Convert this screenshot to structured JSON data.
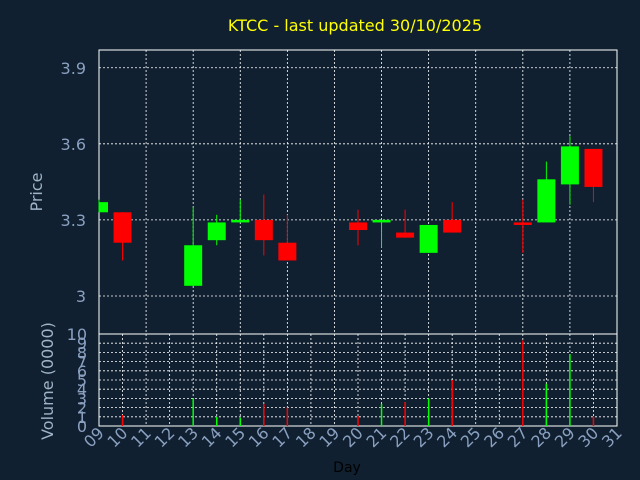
{
  "chart_data": [
    {
      "type": "candlestick",
      "title": "KTCC - last updated 30/10/2025",
      "ylabel": "Price",
      "ylim": [
        2.85,
        3.97
      ],
      "yticks": [
        "3",
        "3.3",
        "3.6",
        "3.9"
      ],
      "x": [
        "09",
        "10",
        "11",
        "12",
        "13",
        "14",
        "15",
        "16",
        "17",
        "18",
        "19",
        "20",
        "21",
        "22",
        "23",
        "24",
        "25",
        "26",
        "27",
        "28",
        "29",
        "30",
        "31"
      ],
      "grid": true,
      "candles": [
        {
          "day": 9,
          "open": 3.33,
          "high": 3.38,
          "low": 3.33,
          "close": 3.37
        },
        {
          "day": 10,
          "open": 3.33,
          "high": 3.33,
          "low": 3.14,
          "close": 3.21
        },
        {
          "day": 13,
          "open": 3.04,
          "high": 3.35,
          "low": 3.04,
          "close": 3.2
        },
        {
          "day": 14,
          "open": 3.22,
          "high": 3.32,
          "low": 3.2,
          "close": 3.29
        },
        {
          "day": 15,
          "open": 3.29,
          "high": 3.38,
          "low": 3.29,
          "close": 3.3
        },
        {
          "day": 16,
          "open": 3.3,
          "high": 3.4,
          "low": 3.16,
          "close": 3.22
        },
        {
          "day": 17,
          "open": 3.21,
          "high": 3.32,
          "low": 3.14,
          "close": 3.14
        },
        {
          "day": 20,
          "open": 3.29,
          "high": 3.34,
          "low": 3.2,
          "close": 3.26
        },
        {
          "day": 21,
          "open": 3.29,
          "high": 3.3,
          "low": 3.19,
          "close": 3.3
        },
        {
          "day": 22,
          "open": 3.25,
          "high": 3.34,
          "low": 3.23,
          "close": 3.23
        },
        {
          "day": 23,
          "open": 3.17,
          "high": 3.28,
          "low": 3.17,
          "close": 3.28
        },
        {
          "day": 24,
          "open": 3.3,
          "high": 3.37,
          "low": 3.25,
          "close": 3.25
        },
        {
          "day": 27,
          "open": 3.29,
          "high": 3.38,
          "low": 3.17,
          "close": 3.28
        },
        {
          "day": 28,
          "open": 3.29,
          "high": 3.53,
          "low": 3.29,
          "close": 3.46
        },
        {
          "day": 29,
          "open": 3.44,
          "high": 3.63,
          "low": 3.36,
          "close": 3.59
        },
        {
          "day": 30,
          "open": 3.58,
          "high": 3.58,
          "low": 3.37,
          "close": 3.43
        }
      ]
    },
    {
      "type": "bar",
      "ylabel": "Volume (0000)",
      "xlabel": "Day",
      "ylim": [
        0,
        10
      ],
      "yticks": [
        "0",
        "1",
        "2",
        "3",
        "4",
        "5",
        "6",
        "7",
        "8",
        "9",
        "10"
      ],
      "x": [
        "09",
        "10",
        "11",
        "12",
        "13",
        "14",
        "15",
        "16",
        "17",
        "18",
        "19",
        "20",
        "21",
        "22",
        "23",
        "24",
        "25",
        "26",
        "27",
        "28",
        "29",
        "30",
        "31"
      ],
      "grid": true,
      "bars": [
        {
          "day": 10,
          "value": 1.2,
          "direction": "down"
        },
        {
          "day": 13,
          "value": 3.0,
          "direction": "up"
        },
        {
          "day": 14,
          "value": 1.0,
          "direction": "up"
        },
        {
          "day": 15,
          "value": 0.9,
          "direction": "up"
        },
        {
          "day": 16,
          "value": 2.4,
          "direction": "down"
        },
        {
          "day": 17,
          "value": 2.0,
          "direction": "down"
        },
        {
          "day": 20,
          "value": 1.1,
          "direction": "down"
        },
        {
          "day": 21,
          "value": 2.4,
          "direction": "up"
        },
        {
          "day": 22,
          "value": 2.6,
          "direction": "down"
        },
        {
          "day": 23,
          "value": 3.0,
          "direction": "up"
        },
        {
          "day": 24,
          "value": 5.0,
          "direction": "down"
        },
        {
          "day": 27,
          "value": 9.3,
          "direction": "down"
        },
        {
          "day": 28,
          "value": 4.6,
          "direction": "up"
        },
        {
          "day": 29,
          "value": 7.8,
          "direction": "up"
        },
        {
          "day": 30,
          "value": 1.0,
          "direction": "down"
        }
      ]
    }
  ],
  "colors": {
    "background": "#102030",
    "up": "#00ff00",
    "down": "#ff0000",
    "grid": "#ffffff",
    "title": "#ffff00",
    "axis_text": "#8aa0c0"
  }
}
